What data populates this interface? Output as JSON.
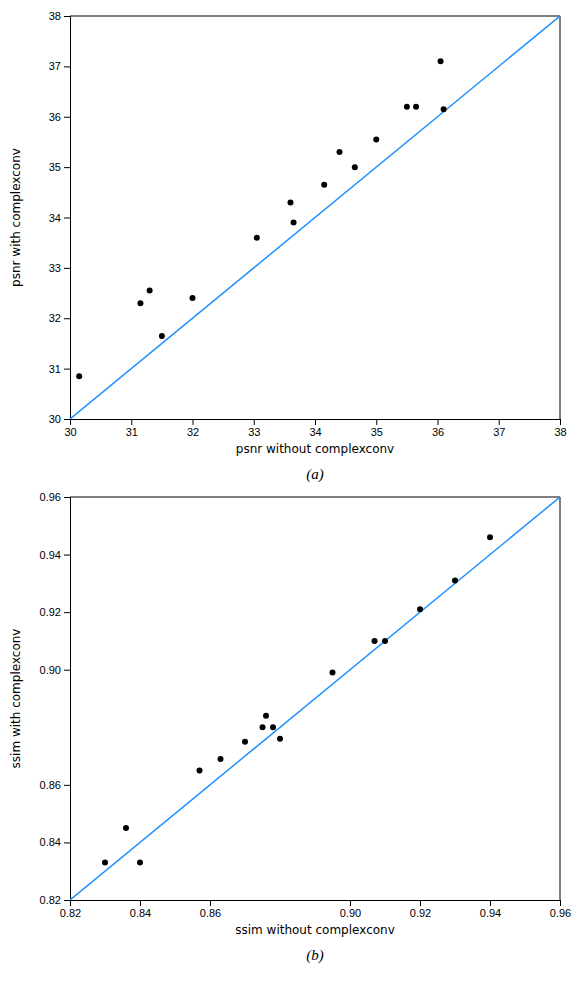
{
  "chart_data": [
    {
      "type": "scatter",
      "title": "(a)",
      "xlabel": "psnr without complexconv",
      "ylabel": "psnr with complexconv",
      "series": [
        {
          "type": "scatter",
          "color": "#000000",
          "x": [
            30.15,
            31.15,
            31.3,
            31.5,
            32.0,
            33.05,
            33.6,
            33.65,
            34.15,
            34.4,
            34.65,
            35.0,
            35.5,
            35.65,
            36.05,
            36.1
          ],
          "values": [
            30.85,
            32.3,
            32.55,
            31.65,
            32.4,
            33.6,
            34.3,
            33.9,
            34.65,
            35.3,
            35.0,
            35.55,
            36.2,
            36.2,
            37.1,
            36.15
          ]
        },
        {
          "type": "line",
          "color": "#1E90FF",
          "x": [
            30,
            38
          ],
          "values": [
            30,
            38
          ]
        }
      ],
      "xlim": [
        30,
        38
      ],
      "ylim": [
        30,
        38
      ],
      "xticks": [
        30,
        31,
        32,
        33,
        34,
        35,
        36,
        37,
        38
      ],
      "yticks": [
        30,
        31,
        32,
        33,
        34,
        35,
        36,
        37,
        38
      ]
    },
    {
      "type": "scatter",
      "title": "(b)",
      "xlabel": "ssim without complexconv",
      "ylabel": "ssim with complexconv",
      "series": [
        {
          "type": "scatter",
          "color": "#000000",
          "x": [
            0.83,
            0.836,
            0.84,
            0.857,
            0.863,
            0.87,
            0.875,
            0.876,
            0.878,
            0.88,
            0.895,
            0.907,
            0.91,
            0.92,
            0.93,
            0.94
          ],
          "values": [
            0.833,
            0.845,
            0.833,
            0.865,
            0.869,
            0.875,
            0.88,
            0.884,
            0.88,
            0.876,
            0.899,
            0.91,
            0.91,
            0.921,
            0.931,
            0.946
          ]
        },
        {
          "type": "line",
          "color": "#1E90FF",
          "x": [
            0.82,
            0.96
          ],
          "values": [
            0.82,
            0.96
          ]
        }
      ],
      "xlim": [
        0.82,
        0.96
      ],
      "ylim": [
        0.82,
        0.96
      ],
      "xticks": [
        0.82,
        0.84,
        0.86,
        {
          "value": 0.9,
          "label": "0.90"
        },
        0.92,
        0.94,
        0.96
      ],
      "yticks": [
        0.82,
        0.84,
        0.86,
        {
          "value": 0.9,
          "label": "0.90"
        },
        0.92,
        0.94,
        0.96
      ]
    }
  ]
}
